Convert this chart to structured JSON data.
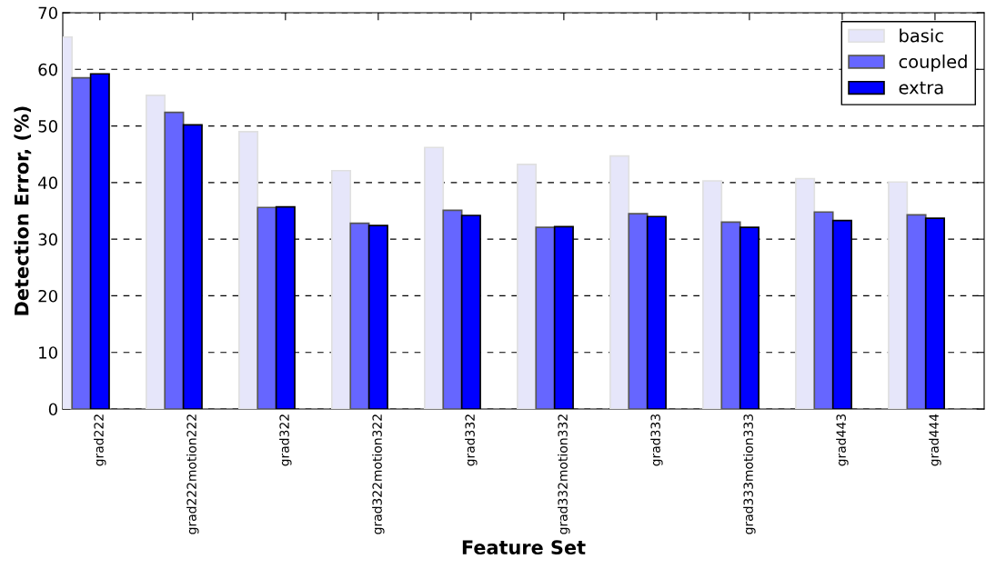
{
  "chart_data": {
    "type": "bar",
    "xlabel": "Feature Set",
    "ylabel": "Detection Error, (%)",
    "categories": [
      "grad222",
      "grad222motion222",
      "grad322",
      "grad322motion322",
      "grad332",
      "grad332motion332",
      "grad333",
      "grad333motion333",
      "grad443",
      "grad444"
    ],
    "series": [
      {
        "name": "basic",
        "color": "#e6e6fa",
        "values": [
          65.7,
          55.4,
          49.0,
          42.1,
          46.2,
          43.2,
          44.7,
          40.3,
          40.7,
          40.1
        ]
      },
      {
        "name": "coupled",
        "color": "#6666ff",
        "values": [
          58.5,
          52.4,
          35.6,
          32.8,
          35.1,
          32.1,
          34.5,
          33.0,
          34.8,
          34.3
        ]
      },
      {
        "name": "extra",
        "color": "#0000ff",
        "values": [
          59.2,
          50.2,
          35.7,
          32.4,
          34.2,
          32.2,
          34.0,
          32.1,
          33.3,
          33.7
        ]
      }
    ],
    "ylim": [
      0,
      70
    ],
    "yticks": [
      0,
      10,
      20,
      30,
      40,
      50,
      60,
      70
    ],
    "grid": "y",
    "legend": "top right"
  }
}
